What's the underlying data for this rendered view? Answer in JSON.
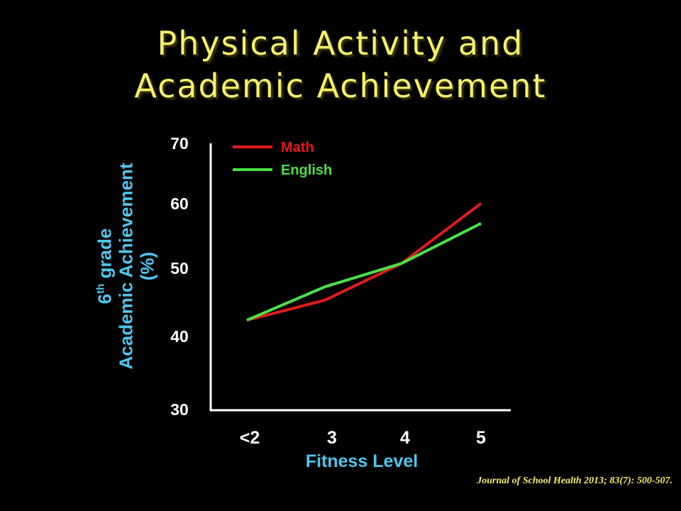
{
  "slide": {
    "title_line1": "Physical Activity and",
    "title_line2": "Academic Achievement",
    "citation": "Journal of School Health 2013; 83(7): 500-507."
  },
  "chart_data": {
    "type": "line",
    "categories": [
      "<2",
      "3",
      "4",
      "5"
    ],
    "series": [
      {
        "name": "Math",
        "color": "#e01b1b",
        "values": [
          43.5,
          46.5,
          52,
          61
        ]
      },
      {
        "name": "English",
        "color": "#4be048",
        "values": [
          43.5,
          48.5,
          52,
          58
        ]
      }
    ],
    "xlabel": "Fitness Level",
    "ylabel_line1": "6",
    "ylabel_sup": "th",
    "ylabel_line1b": " grade",
    "ylabel_line2": "Academic Achievement",
    "ylabel_line3": "(%)",
    "ylim": [
      30,
      70
    ],
    "yticks": [
      30,
      40,
      50,
      60,
      70
    ],
    "legend_position": "top-left",
    "grid": false
  },
  "colors": {
    "background": "#000000",
    "title": "#f5f06a",
    "axis_label": "#4fc6ef",
    "tick_label": "#ffffff"
  }
}
